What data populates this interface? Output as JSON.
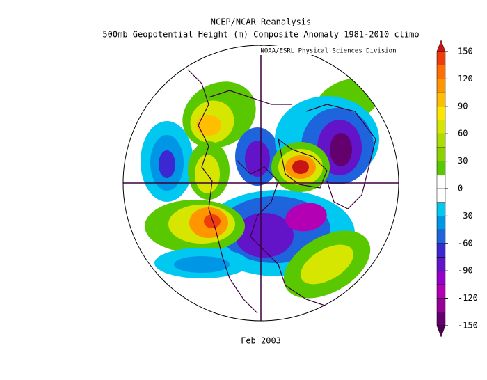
{
  "header": {
    "title": "NCEP/NCAR Reanalysis",
    "subtitle": "500mb Geopotential Height (m) Composite Anomaly 1981-2010 climo",
    "credit": "NOAA/ESRL Physical Sciences Division"
  },
  "map": {
    "caption": "Feb 2003"
  },
  "colorbar": {
    "lim": [
      -150,
      150
    ],
    "ticks": [
      -150,
      -120,
      -90,
      -60,
      -30,
      0,
      30,
      60,
      90,
      120,
      150
    ],
    "colors": [
      "#64006e",
      "#960096",
      "#b400b4",
      "#9600c8",
      "#6414c8",
      "#3c28d2",
      "#1e64dc",
      "#0096e6",
      "#00c8f0",
      "#ffffff",
      "#ffffff",
      "#5ac800",
      "#8cd200",
      "#afdc00",
      "#d7e600",
      "#ffe600",
      "#ffbe00",
      "#ff9600",
      "#ff6e00",
      "#f03c0a"
    ],
    "below_color": "#500050",
    "above_color": "#c81414"
  }
}
